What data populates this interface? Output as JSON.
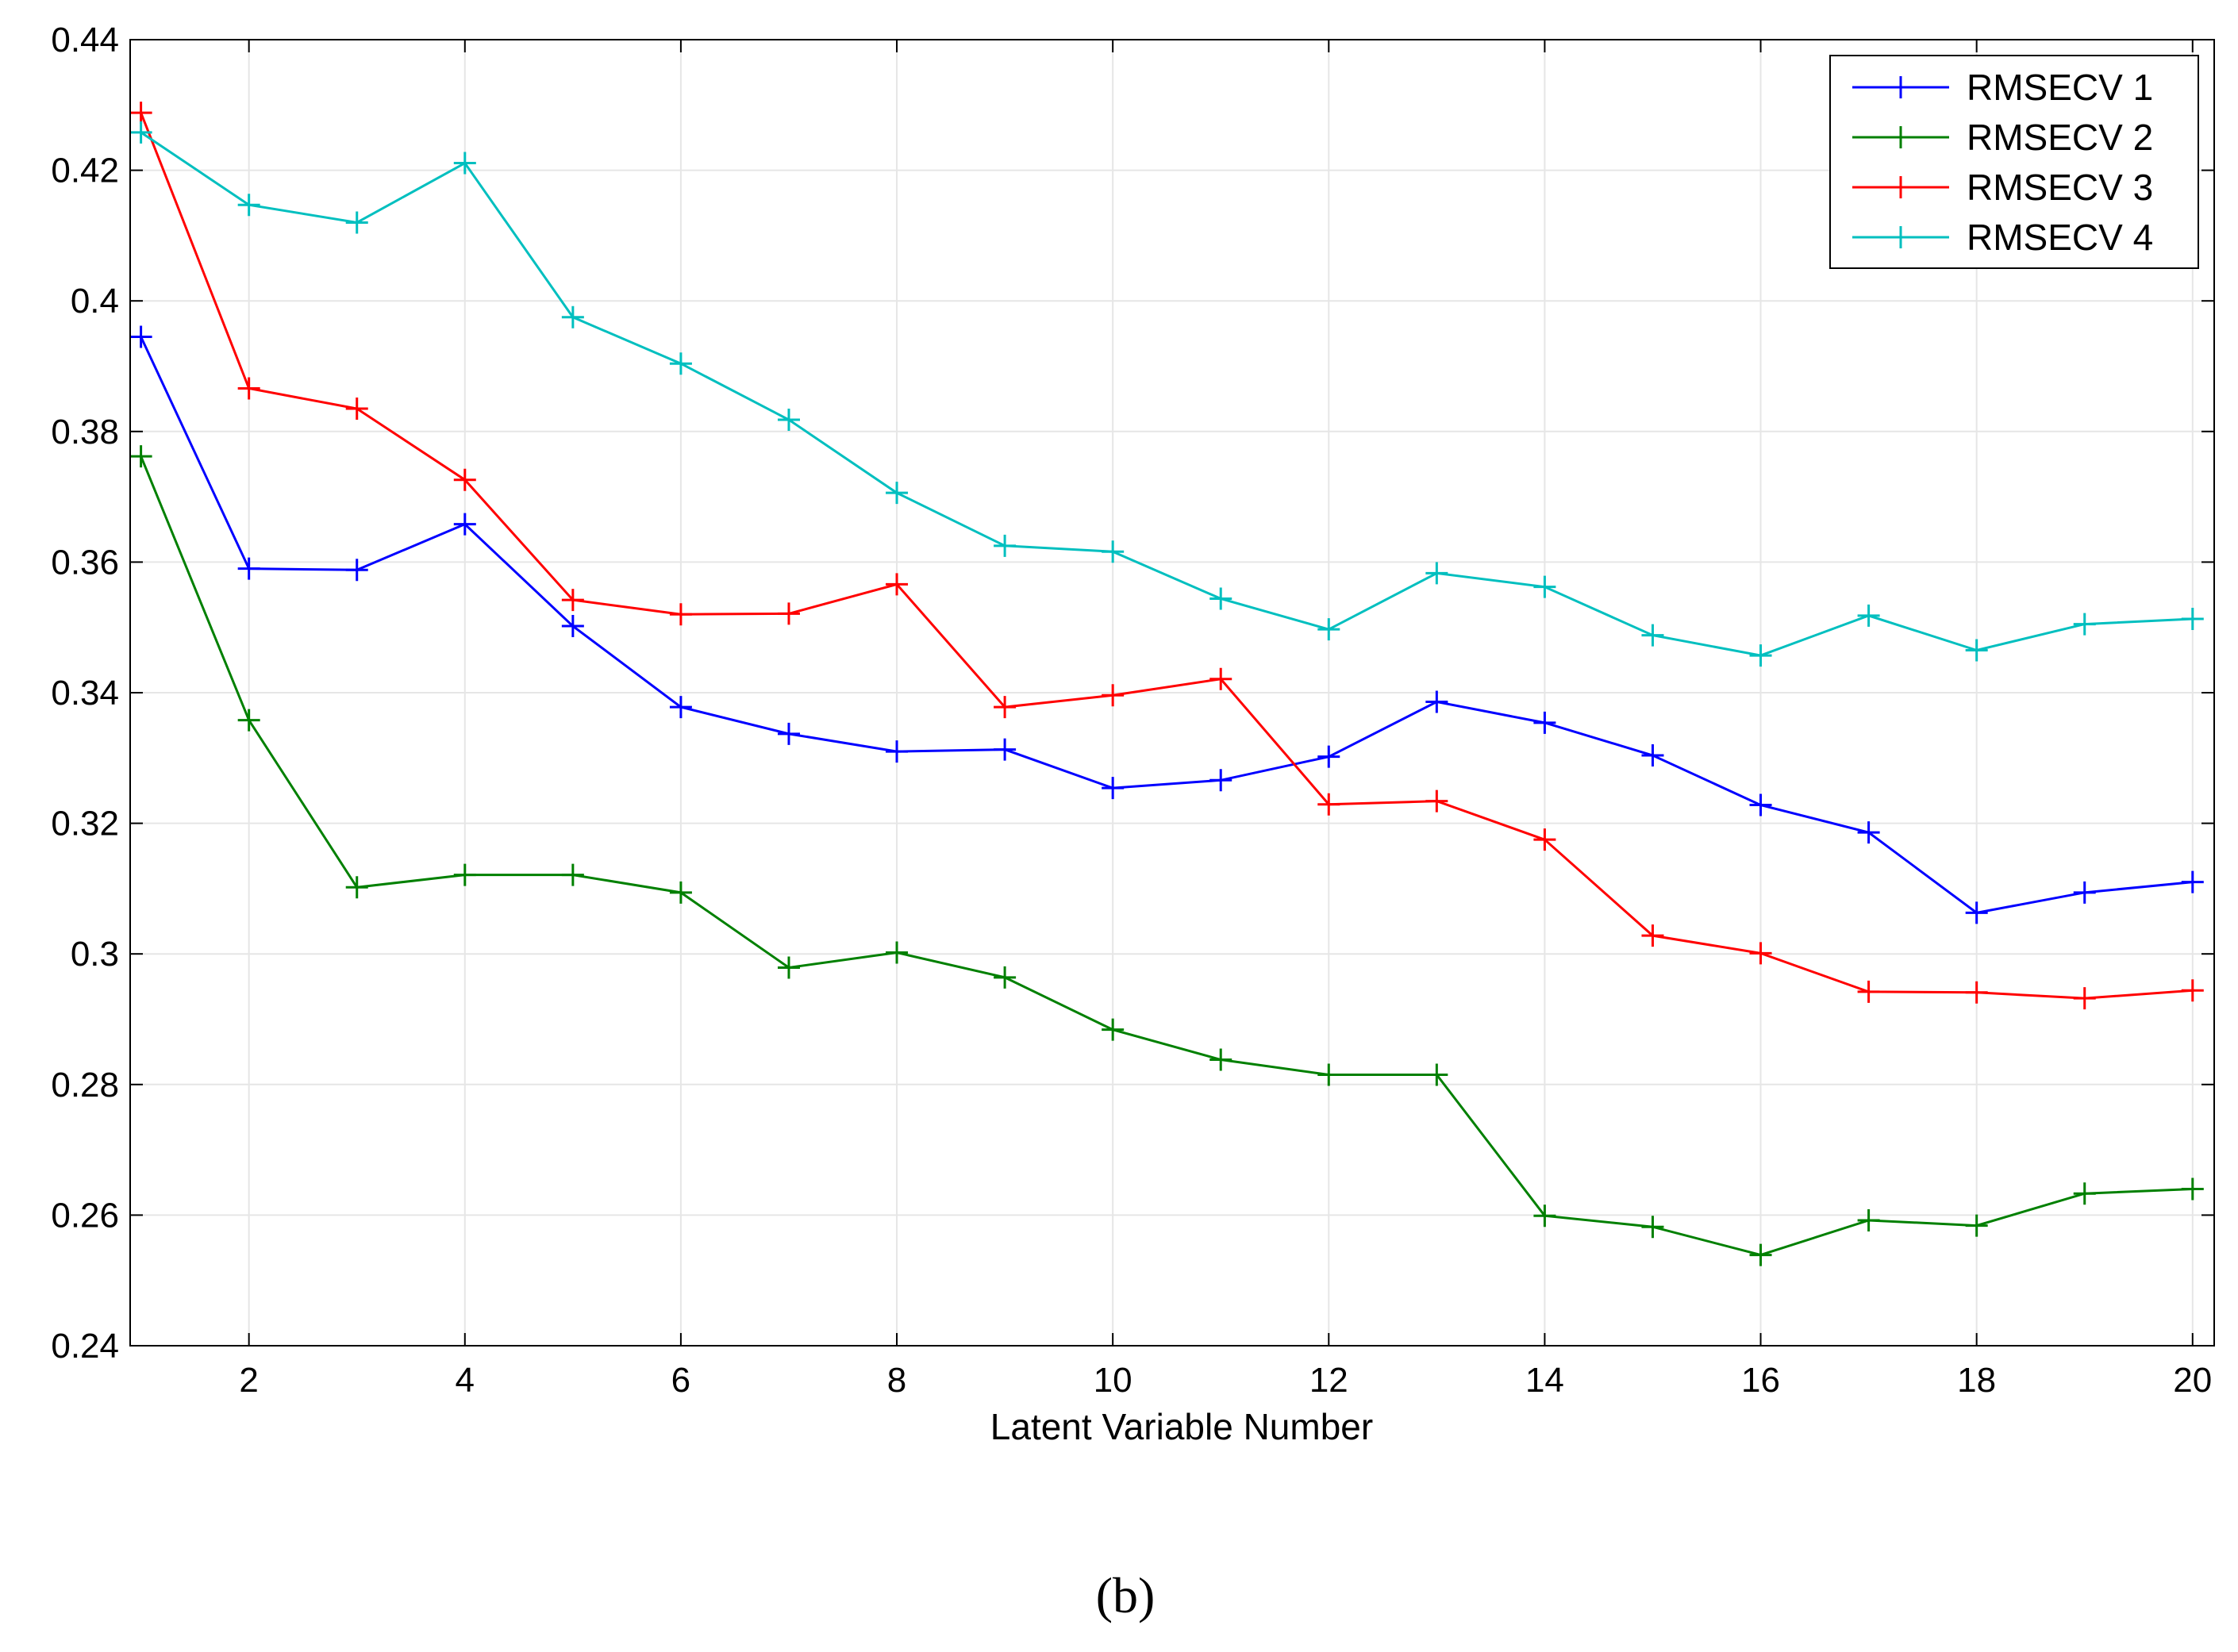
{
  "chart_data": {
    "type": "line",
    "title": "",
    "xlabel": "Latent Variable Number",
    "ylabel": "",
    "xlim": [
      0.9,
      20.2
    ],
    "ylim": [
      0.24,
      0.44
    ],
    "x_ticks": [
      2,
      4,
      6,
      8,
      10,
      12,
      14,
      16,
      18,
      20
    ],
    "x_tick_labels": [
      "2",
      "4",
      "6",
      "8",
      "10",
      "12",
      "14",
      "16",
      "18",
      "20"
    ],
    "y_ticks": [
      0.24,
      0.26,
      0.28,
      0.3,
      0.32,
      0.34,
      0.36,
      0.38,
      0.4,
      0.42,
      0.44
    ],
    "y_tick_labels": [
      "0.24",
      "0.26",
      "0.28",
      "0.3",
      "0.32",
      "0.34",
      "0.36",
      "0.38",
      "0.4",
      "0.42",
      "0.44"
    ],
    "legend_position": "top-right",
    "x": [
      1,
      2,
      3,
      4,
      5,
      6,
      7,
      8,
      9,
      10,
      11,
      12,
      13,
      14,
      15,
      16,
      17,
      18,
      19,
      20
    ],
    "series": [
      {
        "name": "RMSECV 1",
        "color": "#0000ff",
        "values": [
          0.3945,
          0.359,
          0.3588,
          0.3658,
          0.3502,
          0.3378,
          0.3337,
          0.331,
          0.3313,
          0.3254,
          0.3266,
          0.3302,
          0.3386,
          0.3354,
          0.3304,
          0.3228,
          0.3186,
          0.3063,
          0.3094,
          0.311
        ]
      },
      {
        "name": "RMSECV 2",
        "color": "#008000",
        "values": [
          0.3762,
          0.3358,
          0.3102,
          0.3121,
          0.3121,
          0.3094,
          0.2979,
          0.3002,
          0.2964,
          0.2884,
          0.2838,
          0.2815,
          0.2815,
          0.2599,
          0.2582,
          0.2539,
          0.2592,
          0.2584,
          0.2633,
          0.264
        ]
      },
      {
        "name": "RMSECV 3",
        "color": "#ff0000",
        "values": [
          0.4288,
          0.3866,
          0.3835,
          0.3726,
          0.3542,
          0.352,
          0.3521,
          0.3566,
          0.3378,
          0.3396,
          0.3421,
          0.3229,
          0.3234,
          0.3175,
          0.3028,
          0.3001,
          0.2942,
          0.2941,
          0.2932,
          0.2944
        ]
      },
      {
        "name": "RMSECV 4",
        "color": "#00bfbf",
        "values": [
          0.4258,
          0.4147,
          0.412,
          0.4211,
          0.3975,
          0.3904,
          0.3818,
          0.3706,
          0.3625,
          0.3616,
          0.3544,
          0.3497,
          0.3583,
          0.3562,
          0.3488,
          0.3457,
          0.3518,
          0.3465,
          0.3505,
          0.3513
        ]
      }
    ]
  },
  "caption": "(b)"
}
